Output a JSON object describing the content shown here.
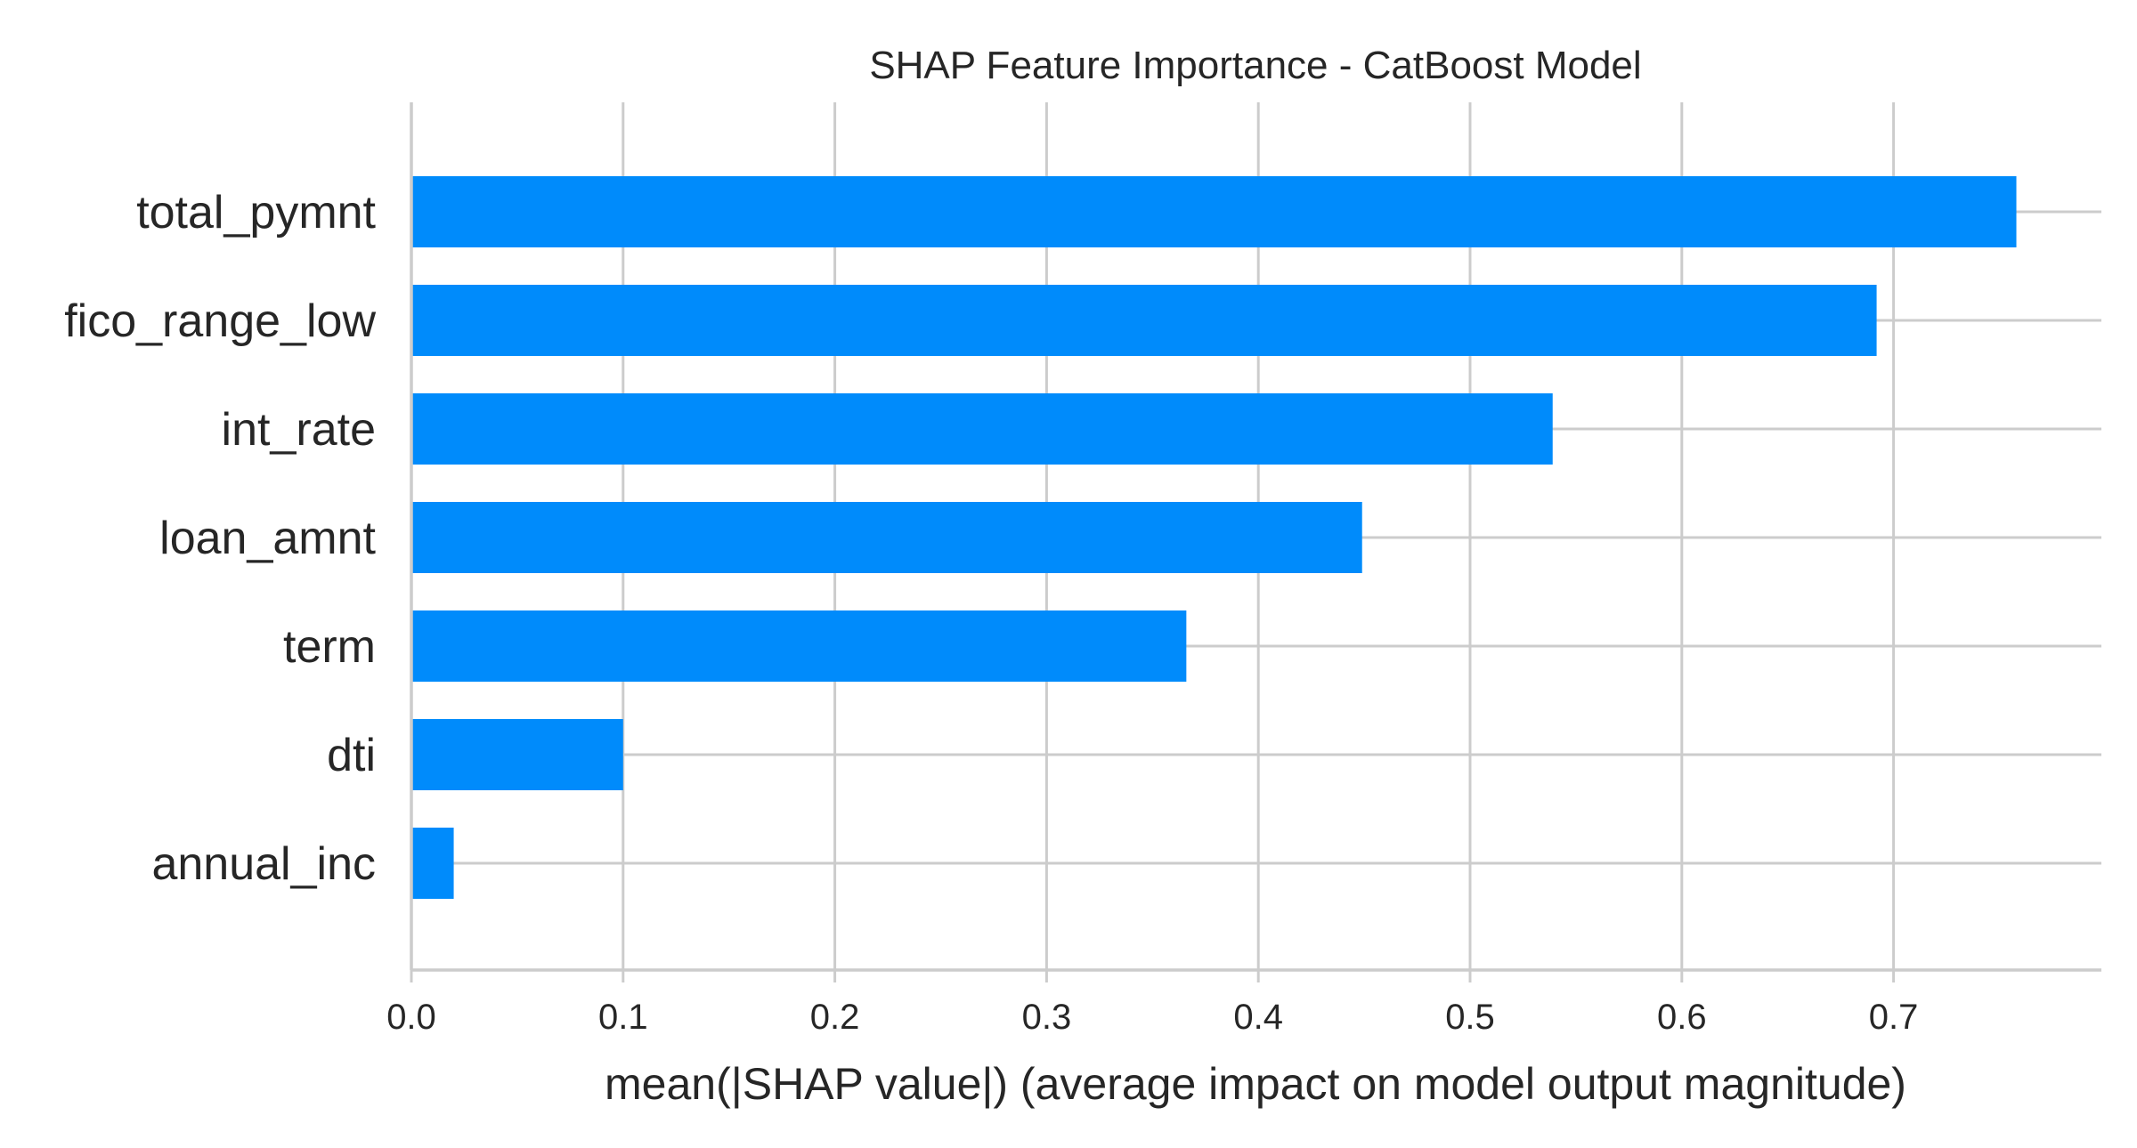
{
  "chart_data": {
    "type": "bar",
    "orientation": "horizontal",
    "title": "SHAP Feature Importance - CatBoost Model",
    "xlabel": "mean(|SHAP value|) (average impact on model output magnitude)",
    "ylabel": "",
    "categories": [
      "total_pymnt",
      "fico_range_low",
      "int_rate",
      "loan_amnt",
      "term",
      "dti",
      "annual_inc"
    ],
    "values": [
      0.758,
      0.692,
      0.539,
      0.449,
      0.366,
      0.1,
      0.02
    ],
    "xlim": [
      0.0,
      0.8
    ],
    "xticks": [
      "0.0",
      "0.1",
      "0.2",
      "0.3",
      "0.4",
      "0.5",
      "0.6",
      "0.7"
    ],
    "grid": true,
    "legend": "none",
    "bar_color": "#008bfb",
    "grid_color": "#cccccc"
  }
}
